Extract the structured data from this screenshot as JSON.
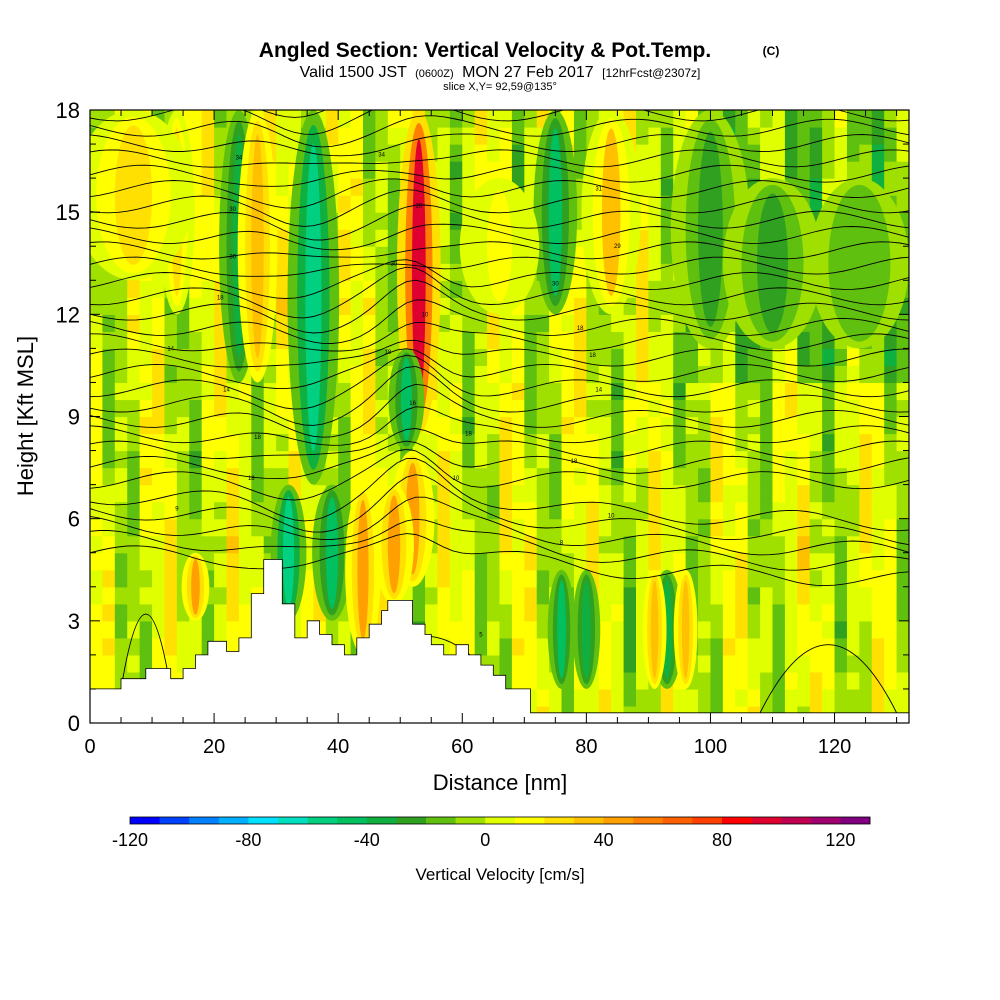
{
  "chart_data": {
    "type": "heatmap",
    "title": "Angled Section: Vertical Velocity & Pot.Temp.",
    "title_unit": "(C)",
    "subtitle": {
      "prefix": "Valid 1500 JST",
      "utc": "(0600Z)",
      "date": "MON 27 Feb 2017",
      "forecast": "[12hrFcst@2307z]"
    },
    "slice_label": "slice X,Y= 92,59@135°",
    "xlabel": "Distance [nm]",
    "ylabel": "Height [Kft MSL]",
    "xlim": [
      0,
      132
    ],
    "ylim": [
      0,
      18
    ],
    "x_ticks": [
      "0",
      "20",
      "40",
      "60",
      "80",
      "100",
      "120"
    ],
    "x_tick_values": [
      0,
      20,
      40,
      60,
      80,
      100,
      120
    ],
    "y_ticks": [
      "0",
      "3",
      "6",
      "9",
      "12",
      "15",
      "18"
    ],
    "y_tick_values": [
      0,
      3,
      6,
      9,
      12,
      15,
      18
    ],
    "colorbar": {
      "label": "Vertical Velocity [cm/s]",
      "range": [
        -120,
        130
      ],
      "step": 10,
      "tick_labels": [
        "-120",
        "-80",
        "-40",
        "0",
        "40",
        "80",
        "120"
      ],
      "tick_values": [
        -120,
        -80,
        -40,
        0,
        40,
        80,
        120
      ],
      "colors": [
        "#0000ff",
        "#0040ff",
        "#0080ff",
        "#00b0ff",
        "#00e0ff",
        "#00e0c0",
        "#00d080",
        "#00c060",
        "#10b040",
        "#30a020",
        "#60c010",
        "#a0e000",
        "#e0ff00",
        "#ffff00",
        "#ffe000",
        "#ffc000",
        "#ffa000",
        "#ff8000",
        "#ff6000",
        "#ff4000",
        "#ff0000",
        "#e00030",
        "#c00050",
        "#a00070",
        "#800080"
      ]
    },
    "terrain": [
      [
        0,
        1.0
      ],
      [
        5,
        1.0
      ],
      [
        5,
        1.3
      ],
      [
        9,
        1.3
      ],
      [
        9,
        1.6
      ],
      [
        13,
        1.6
      ],
      [
        13,
        1.3
      ],
      [
        15,
        1.3
      ],
      [
        15,
        1.6
      ],
      [
        17,
        1.6
      ],
      [
        17,
        2.0
      ],
      [
        19,
        2.0
      ],
      [
        19,
        2.4
      ],
      [
        22,
        2.4
      ],
      [
        22,
        2.1
      ],
      [
        24,
        2.1
      ],
      [
        24,
        2.5
      ],
      [
        26,
        2.5
      ],
      [
        26,
        3.8
      ],
      [
        28,
        3.8
      ],
      [
        28,
        4.8
      ],
      [
        31,
        4.8
      ],
      [
        31,
        3.5
      ],
      [
        33,
        3.5
      ],
      [
        33,
        2.5
      ],
      [
        35,
        2.5
      ],
      [
        35,
        3.0
      ],
      [
        37,
        3.0
      ],
      [
        37,
        2.6
      ],
      [
        39,
        2.6
      ],
      [
        39,
        2.3
      ],
      [
        41,
        2.3
      ],
      [
        41,
        2.0
      ],
      [
        43,
        2.0
      ],
      [
        43,
        2.5
      ],
      [
        45,
        2.5
      ],
      [
        45,
        2.9
      ],
      [
        47,
        2.9
      ],
      [
        47,
        3.3
      ],
      [
        48,
        3.3
      ],
      [
        48,
        3.6
      ],
      [
        52,
        3.6
      ],
      [
        52,
        2.9
      ],
      [
        54,
        2.9
      ],
      [
        54,
        2.6
      ],
      [
        55,
        2.6
      ],
      [
        55,
        2.3
      ],
      [
        57,
        2.3
      ],
      [
        57,
        2.0
      ],
      [
        59,
        2.0
      ],
      [
        59,
        2.3
      ],
      [
        61,
        2.3
      ],
      [
        61,
        2.0
      ],
      [
        63,
        2.0
      ],
      [
        63,
        1.7
      ],
      [
        65,
        1.7
      ],
      [
        65,
        1.4
      ],
      [
        67,
        1.4
      ],
      [
        67,
        1.0
      ],
      [
        71,
        1.0
      ],
      [
        71,
        0.3
      ],
      [
        132,
        0.3
      ]
    ],
    "features": [
      {
        "x": 53,
        "w": 2.2,
        "y0": 8.5,
        "y1": 18,
        "v": 95
      },
      {
        "x": 52,
        "w": 2.2,
        "y0": 4,
        "y1": 8,
        "v": 45
      },
      {
        "x": 51,
        "w": 1.8,
        "y0": 8,
        "y1": 11,
        "v": -45
      },
      {
        "x": 36,
        "w": 2.6,
        "y0": 7,
        "y1": 18,
        "v": -55
      },
      {
        "x": 39,
        "w": 2,
        "y0": 3,
        "y1": 7,
        "v": -45
      },
      {
        "x": 32,
        "w": 1.8,
        "y0": 3,
        "y1": 7,
        "v": -60
      },
      {
        "x": 75,
        "w": 2.2,
        "y0": 12,
        "y1": 18,
        "v": -45
      },
      {
        "x": 76,
        "w": 1.4,
        "y0": 1,
        "y1": 4.5,
        "v": -45
      },
      {
        "x": 80,
        "w": 1.4,
        "y0": 1,
        "y1": 4.5,
        "v": -40
      },
      {
        "x": 93,
        "w": 1.6,
        "y0": 1,
        "y1": 4.5,
        "v": -40
      },
      {
        "x": 24,
        "w": 2,
        "y0": 10,
        "y1": 18,
        "v": -35
      },
      {
        "x": 27,
        "w": 2,
        "y0": 10,
        "y1": 18,
        "v": 35
      },
      {
        "x": 44,
        "w": 1.8,
        "y0": 2,
        "y1": 7,
        "v": 45
      },
      {
        "x": 49,
        "w": 2,
        "y0": 3.5,
        "y1": 7,
        "v": 45
      },
      {
        "x": 17,
        "w": 1.4,
        "y0": 3,
        "y1": 5,
        "v": 45
      },
      {
        "x": 14,
        "w": 1.8,
        "y0": 12,
        "y1": 18,
        "v": 20
      },
      {
        "x": 84,
        "w": 3,
        "y0": 12,
        "y1": 18,
        "v": 30
      },
      {
        "x": 91,
        "w": 1.2,
        "y0": 1,
        "y1": 4.5,
        "v": 35
      },
      {
        "x": 96,
        "w": 1.2,
        "y0": 1,
        "y1": 4.5,
        "v": 35
      },
      {
        "x": 100,
        "w": 4,
        "y0": 11,
        "y1": 18,
        "v": -25
      },
      {
        "x": 110,
        "w": 5,
        "y0": 11,
        "y1": 16,
        "v": -22
      },
      {
        "x": 124,
        "w": 5,
        "y0": 11,
        "y1": 16,
        "v": -20
      },
      {
        "x": 66,
        "w": 4,
        "y0": 12,
        "y1": 16,
        "v": 15
      },
      {
        "x": 7,
        "w": 6,
        "y0": 13,
        "y1": 18,
        "v": 20
      }
    ],
    "isentropes": {
      "count": 34,
      "labels": [
        {
          "x": 24,
          "y": 16.6,
          "text": "34"
        },
        {
          "x": 47,
          "y": 16.7,
          "text": "34"
        },
        {
          "x": 82,
          "y": 15.7,
          "text": "31"
        },
        {
          "x": 23,
          "y": 15.1,
          "text": "30"
        },
        {
          "x": 53,
          "y": 15.2,
          "text": "28"
        },
        {
          "x": 85,
          "y": 14.0,
          "text": "29"
        },
        {
          "x": 23,
          "y": 13.7,
          "text": "30"
        },
        {
          "x": 49,
          "y": 13.5,
          "text": "30"
        },
        {
          "x": 75,
          "y": 12.9,
          "text": "30"
        },
        {
          "x": 21,
          "y": 12.5,
          "text": "18"
        },
        {
          "x": 54,
          "y": 12.0,
          "text": "10"
        },
        {
          "x": 79,
          "y": 11.6,
          "text": "18"
        },
        {
          "x": 13,
          "y": 11.0,
          "text": "14"
        },
        {
          "x": 48,
          "y": 10.9,
          "text": "18"
        },
        {
          "x": 81,
          "y": 10.8,
          "text": "18"
        },
        {
          "x": 22,
          "y": 9.8,
          "text": "14"
        },
        {
          "x": 52,
          "y": 9.4,
          "text": "16"
        },
        {
          "x": 82,
          "y": 9.8,
          "text": "14"
        },
        {
          "x": 27,
          "y": 8.4,
          "text": "18"
        },
        {
          "x": 61,
          "y": 8.5,
          "text": "18"
        },
        {
          "x": 78,
          "y": 7.7,
          "text": "18"
        },
        {
          "x": 26,
          "y": 7.2,
          "text": "18"
        },
        {
          "x": 59,
          "y": 7.2,
          "text": "10"
        },
        {
          "x": 14,
          "y": 6.3,
          "text": "9"
        },
        {
          "x": 84,
          "y": 6.1,
          "text": "10"
        },
        {
          "x": 76,
          "y": 5.3,
          "text": "8"
        },
        {
          "x": 63,
          "y": 2.6,
          "text": "5"
        }
      ]
    }
  }
}
